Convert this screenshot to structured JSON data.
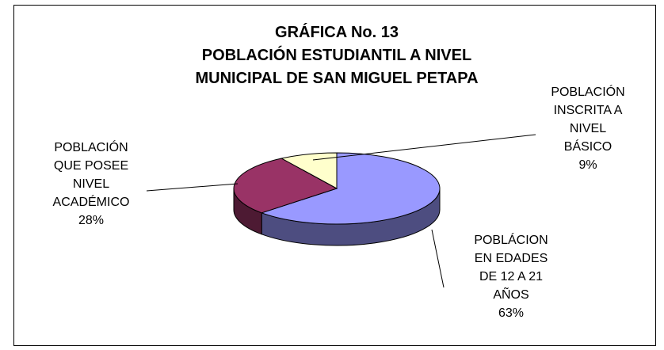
{
  "chart_data": {
    "type": "pie3d",
    "title": "GRÁFICA No. 13",
    "subtitle": "POBLACIÓN ESTUDIANTIL A NIVEL MUNICIPAL DE SAN MIGUEL PETAPA",
    "categories": [
      "POBLÁCION EN EDADES DE 12 A 21 AÑOS",
      "POBLACIÓN QUE POSEE NIVEL ACADÉMICO",
      "POBLACIÓN INSCRITA A NIVEL BÁSICO"
    ],
    "values": [
      63,
      28,
      9
    ],
    "value_labels": [
      "63%",
      "28%",
      "9%"
    ],
    "colors": [
      "#9999ff",
      "#993366",
      "#ffffcc"
    ]
  }
}
